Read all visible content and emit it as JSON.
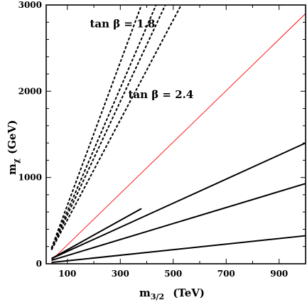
{
  "chart_data": {
    "type": "line",
    "title": "",
    "xlabel": "m",
    "xlabel_sub": "3/2",
    "xlabel_unit": "(TeV)",
    "ylabel": "m",
    "ylabel_sub": "χ",
    "ylabel_unit": "(GeV)",
    "xlim": [
      20,
      1000
    ],
    "ylim": [
      0,
      3000
    ],
    "x_ticks": [
      100,
      300,
      500,
      700,
      900
    ],
    "y_ticks": [
      0,
      1000,
      2000,
      3000
    ],
    "grid": false,
    "legend": "none",
    "annotations": [
      {
        "text": "tan β = 1.8",
        "x": 185,
        "y": 2740
      },
      {
        "text": "tan β = 2.4",
        "x": 330,
        "y": 1920
      }
    ],
    "series": [
      {
        "style": "dashed",
        "color": "#000000",
        "x": [
          40,
          380
        ],
        "y": [
          180,
          3000
        ]
      },
      {
        "style": "dashed",
        "color": "#000000",
        "x": [
          40,
          435
        ],
        "y": [
          180,
          3000
        ]
      },
      {
        "style": "dashed",
        "color": "#000000",
        "x": [
          40,
          470
        ],
        "y": [
          170,
          3000
        ]
      },
      {
        "style": "dashed",
        "color": "#000000",
        "x": [
          40,
          530
        ],
        "y": [
          160,
          3000
        ]
      },
      {
        "style": "solid",
        "color": "#ff0000",
        "x": [
          40,
          1000
        ],
        "y": [
          40,
          2900
        ]
      },
      {
        "style": "solid",
        "color": "#000000",
        "x": [
          40,
          380
        ],
        "y": [
          60,
          640
        ]
      },
      {
        "style": "solid",
        "color": "#000000",
        "x": [
          40,
          1000
        ],
        "y": [
          60,
          1400
        ]
      },
      {
        "style": "solid",
        "color": "#000000",
        "x": [
          40,
          1000
        ],
        "y": [
          40,
          930
        ]
      },
      {
        "style": "solid",
        "color": "#000000",
        "x": [
          40,
          1000
        ],
        "y": [
          15,
          325
        ]
      }
    ]
  }
}
